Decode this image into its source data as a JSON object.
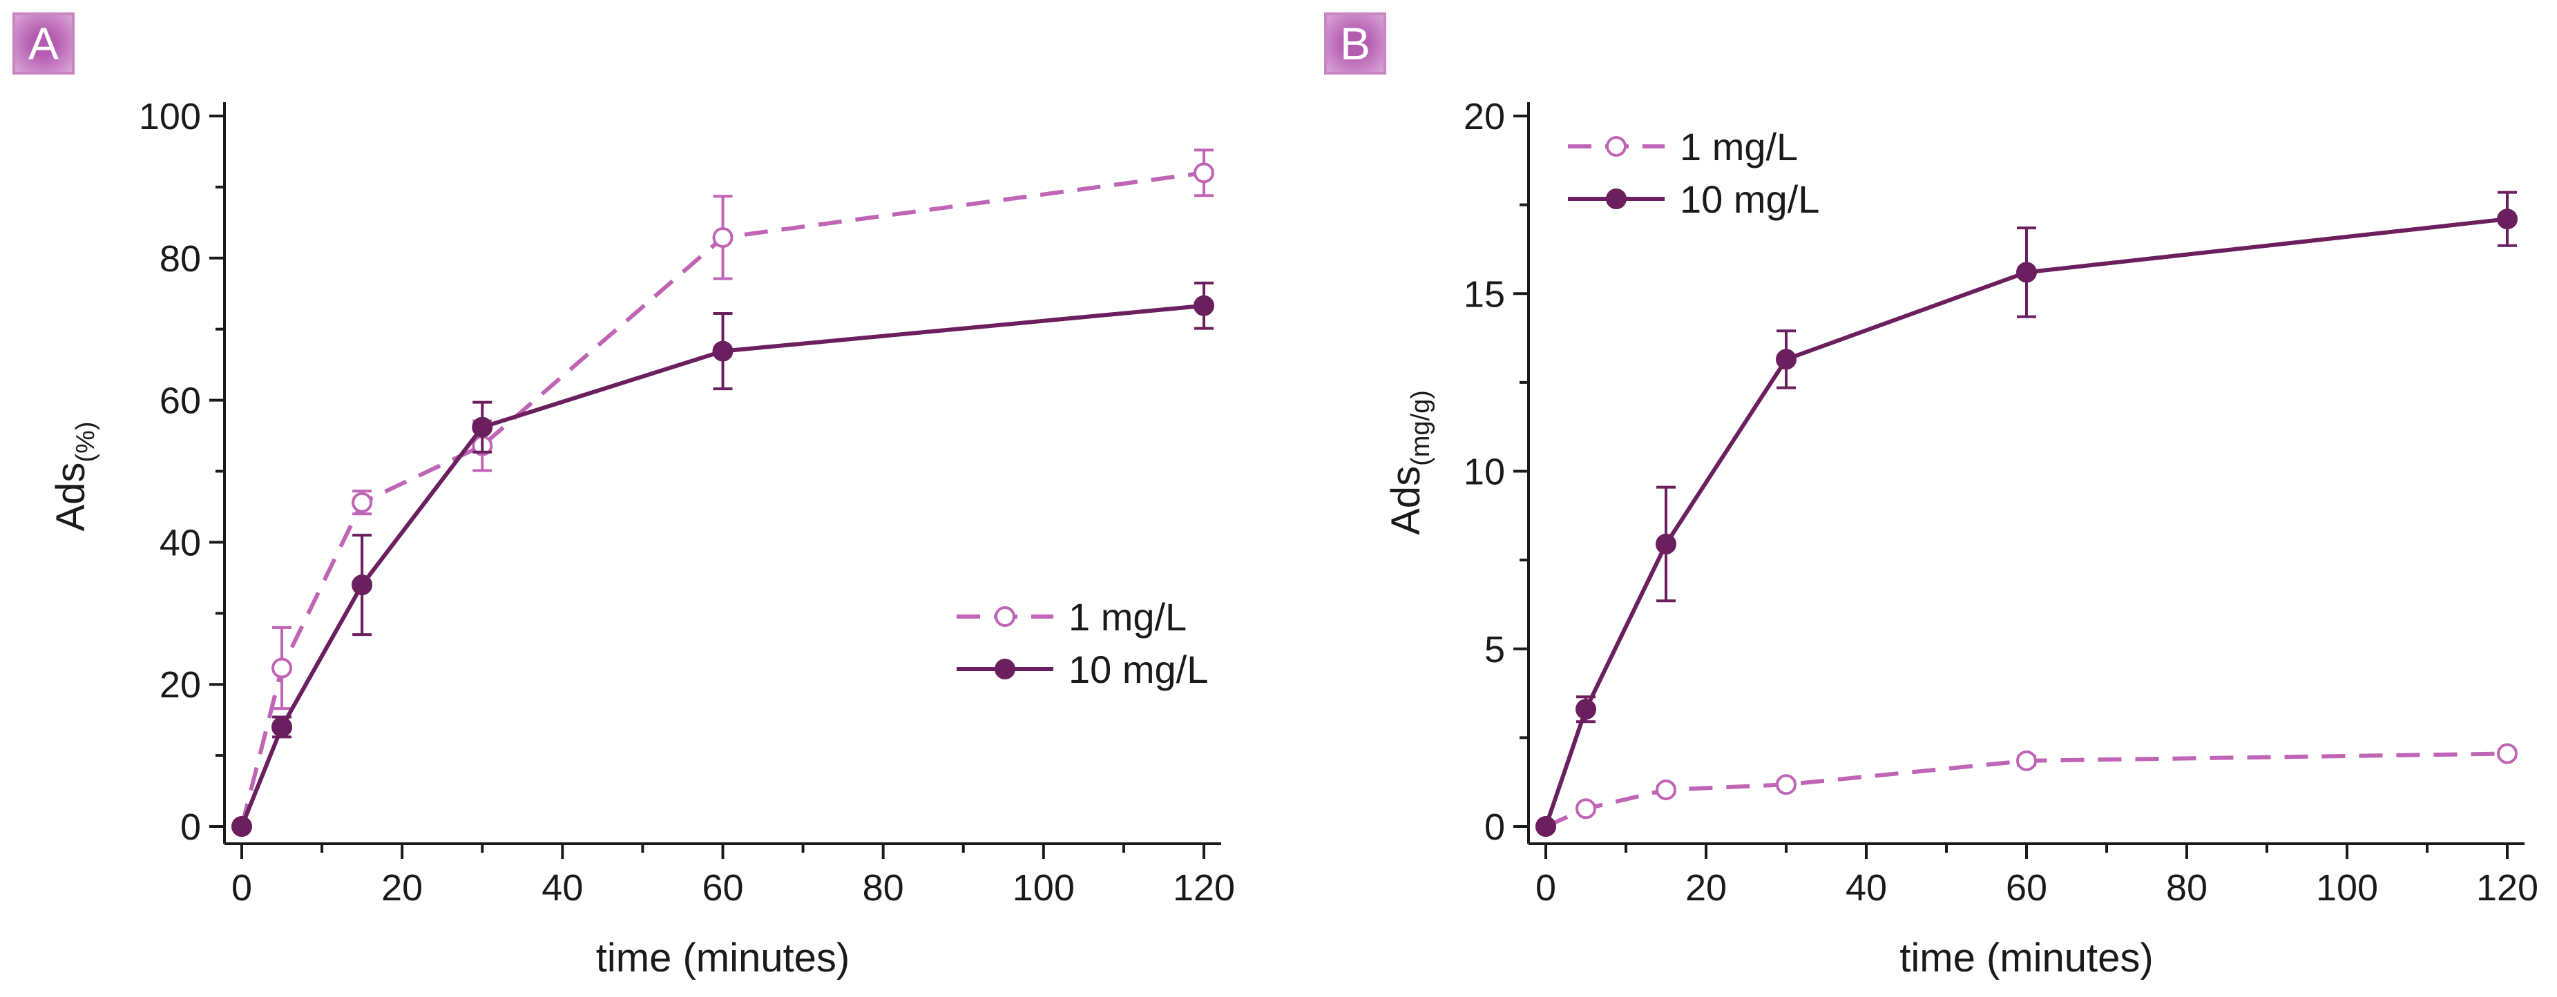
{
  "colors": {
    "series_1mg": "#c065b6",
    "series_10mg": "#6b1f5f",
    "axis": "#1a1a1a"
  },
  "chart_data": [
    {
      "panel_label": "A",
      "type": "line",
      "xlabel": "time (minutes)",
      "ylabel": "Ads",
      "ylabel_subscript": "(%)",
      "xlim": [
        0,
        120
      ],
      "ylim": [
        0,
        100
      ],
      "xticks": [
        0,
        20,
        40,
        60,
        80,
        100,
        120
      ],
      "yticks": [
        0,
        20,
        40,
        60,
        80,
        100
      ],
      "xtick_labels": [
        "0",
        "20",
        "40",
        "60",
        "80",
        "100",
        "120"
      ],
      "ytick_labels": [
        "0",
        "20",
        "40",
        "60",
        "80",
        "100"
      ],
      "legend_position": "center-right",
      "series": [
        {
          "name": "1 mg/L",
          "style": "dashed",
          "marker": "open-circle",
          "x": [
            0,
            5,
            15,
            30,
            60,
            120
          ],
          "y": [
            0,
            22.3,
            45.6,
            53.6,
            82.9,
            92.0
          ],
          "error": [
            0,
            5.7,
            1.6,
            3.5,
            5.8,
            3.2
          ]
        },
        {
          "name": "10 mg/L",
          "style": "solid",
          "marker": "filled-circle",
          "x": [
            0,
            5,
            15,
            30,
            60,
            120
          ],
          "y": [
            0,
            14.0,
            34.0,
            56.2,
            66.9,
            73.3
          ],
          "error": [
            0,
            1.4,
            7.0,
            3.5,
            5.3,
            3.2
          ]
        }
      ]
    },
    {
      "panel_label": "B",
      "type": "line",
      "xlabel": "time (minutes)",
      "ylabel": "Ads",
      "ylabel_subscript": "(mg/g)",
      "xlim": [
        0,
        120
      ],
      "ylim": [
        0,
        20
      ],
      "xticks": [
        0,
        20,
        40,
        60,
        80,
        100,
        120
      ],
      "yticks": [
        0,
        5,
        10,
        15,
        20
      ],
      "xtick_labels": [
        "0",
        "20",
        "40",
        "60",
        "80",
        "100",
        "120"
      ],
      "ytick_labels": [
        "0",
        "5",
        "10",
        "15",
        "20"
      ],
      "legend_position": "top-left",
      "series": [
        {
          "name": "1 mg/L",
          "style": "dashed",
          "marker": "open-circle",
          "x": [
            0,
            5,
            15,
            30,
            60,
            120
          ],
          "y": [
            0,
            0.5,
            1.03,
            1.18,
            1.85,
            2.05
          ],
          "error": [
            0,
            0.1,
            0.1,
            0.1,
            0.12,
            0.1
          ]
        },
        {
          "name": "10 mg/L",
          "style": "solid",
          "marker": "filled-circle",
          "x": [
            0,
            5,
            15,
            30,
            60,
            120
          ],
          "y": [
            0,
            3.3,
            7.95,
            13.15,
            15.6,
            17.1
          ],
          "error": [
            0,
            0.35,
            1.6,
            0.8,
            1.25,
            0.75
          ]
        }
      ]
    }
  ]
}
